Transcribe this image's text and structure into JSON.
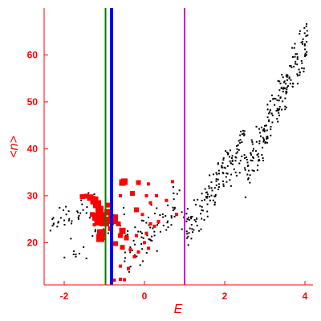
{
  "chart_data": {
    "type": "scatter",
    "xlabel": "E",
    "ylabel": "<n>",
    "xlim": [
      -2.5,
      4.2
    ],
    "ylim": [
      11,
      70
    ],
    "xticks": [
      -2,
      0,
      2,
      4
    ],
    "yticks": [
      20,
      30,
      40,
      50,
      60
    ],
    "xtick_labels": [
      "-2",
      "0",
      "2",
      "4"
    ],
    "ytick_labels": [
      "20",
      "30",
      "40",
      "50",
      "60"
    ],
    "grid": false,
    "colors": {
      "axes": "#ff0000",
      "background_points": "#000000",
      "highlight_points": "#ff0000",
      "line_green": "#008000",
      "line_blue": "#0000ff",
      "line_magenta": "#cc00cc"
    },
    "vertical_lines": [
      {
        "x": -0.97,
        "color": "green"
      },
      {
        "x": -0.82,
        "color": "blue"
      },
      {
        "x": 1.0,
        "color": "magenta"
      }
    ],
    "series": [
      {
        "color": "black",
        "style": "small dots",
        "clusters": [
          {
            "x_range": [
              -2.4,
              -1.2
            ],
            "y_range": [
              22,
              30
            ],
            "count": 40,
            "trend": 0.72
          },
          {
            "x_range": [
              -2.0,
              -0.5
            ],
            "y_range": [
              15,
              28
            ],
            "count": 30,
            "trend": 0.7
          },
          {
            "x_range": [
              -0.5,
              1.0
            ],
            "y_range": [
              14,
              33
            ],
            "count": 80,
            "trend": 0.55
          },
          {
            "x_range": [
              1.0,
              2.5
            ],
            "y_range": [
              18,
              45
            ],
            "count": 150,
            "trend": 0.75
          },
          {
            "x_range": [
              2.5,
              4.1
            ],
            "y_range": [
              30,
              68
            ],
            "count": 200,
            "trend": 0.8
          }
        ]
      },
      {
        "color": "red",
        "style": "squares",
        "points": [
          {
            "x": -1.55,
            "y": 29.8,
            "size": 3
          },
          {
            "x": -1.45,
            "y": 29.9,
            "size": 3
          },
          {
            "x": -1.35,
            "y": 29.6,
            "size": 4
          },
          {
            "x": -1.25,
            "y": 29.0,
            "size": 5
          },
          {
            "x": -1.18,
            "y": 28.2,
            "size": 5
          },
          {
            "x": -1.12,
            "y": 27.0,
            "size": 5
          },
          {
            "x": -1.05,
            "y": 25.8,
            "size": 4
          },
          {
            "x": -1.0,
            "y": 24.5,
            "size": 6
          },
          {
            "x": -1.08,
            "y": 22.0,
            "size": 5
          },
          {
            "x": -1.1,
            "y": 21.0,
            "size": 5
          },
          {
            "x": -1.3,
            "y": 26.0,
            "size": 3
          },
          {
            "x": -1.2,
            "y": 25.5,
            "size": 5
          },
          {
            "x": -0.92,
            "y": 26.5,
            "size": 4
          },
          {
            "x": -0.78,
            "y": 25.0,
            "size": 6
          },
          {
            "x": -0.65,
            "y": 24.0,
            "size": 3
          },
          {
            "x": -0.55,
            "y": 22.5,
            "size": 4
          },
          {
            "x": -0.45,
            "y": 21.0,
            "size": 3
          },
          {
            "x": -0.6,
            "y": 21.5,
            "size": 3
          },
          {
            "x": -0.72,
            "y": 19.8,
            "size": 3
          },
          {
            "x": -0.55,
            "y": 19.0,
            "size": 3
          },
          {
            "x": -0.35,
            "y": 18.5,
            "size": 2
          },
          {
            "x": -0.25,
            "y": 17.0,
            "size": 2
          },
          {
            "x": -0.6,
            "y": 15.0,
            "size": 2
          },
          {
            "x": -0.4,
            "y": 14.5,
            "size": 2
          },
          {
            "x": -0.75,
            "y": 12.0,
            "size": 2
          },
          {
            "x": -0.6,
            "y": 12.2,
            "size": 2
          },
          {
            "x": -0.5,
            "y": 12.1,
            "size": 2
          },
          {
            "x": -0.2,
            "y": 27.0,
            "size": 3
          },
          {
            "x": -0.05,
            "y": 26.0,
            "size": 2
          },
          {
            "x": 0.05,
            "y": 22.0,
            "size": 2
          },
          {
            "x": 0.15,
            "y": 24.0,
            "size": 2
          },
          {
            "x": 0.25,
            "y": 23.5,
            "size": 2
          },
          {
            "x": 0.35,
            "y": 24.5,
            "size": 2
          },
          {
            "x": -0.2,
            "y": 21.5,
            "size": 2
          },
          {
            "x": 0.0,
            "y": 20.0,
            "size": 2
          },
          {
            "x": 0.1,
            "y": 18.8,
            "size": 2
          },
          {
            "x": -0.15,
            "y": 18.0,
            "size": 2
          },
          {
            "x": -0.5,
            "y": 33.0,
            "size": 4
          },
          {
            "x": -0.55,
            "y": 32.8,
            "size": 4
          },
          {
            "x": -0.15,
            "y": 32.8,
            "size": 3
          },
          {
            "x": 0.1,
            "y": 32.5,
            "size": 2
          },
          {
            "x": -0.3,
            "y": 30.5,
            "size": 3
          },
          {
            "x": -0.6,
            "y": 30.0,
            "size": 2
          },
          {
            "x": 0.05,
            "y": 30.0,
            "size": 2
          },
          {
            "x": 0.15,
            "y": 28.5,
            "size": 2
          },
          {
            "x": 0.3,
            "y": 30.0,
            "size": 2
          },
          {
            "x": 0.55,
            "y": 29.0,
            "size": 2
          },
          {
            "x": 0.7,
            "y": 33.0,
            "size": 2
          },
          {
            "x": 0.8,
            "y": 26.0,
            "size": 2
          },
          {
            "x": -1.25,
            "y": 23.8,
            "size": 2
          },
          {
            "x": -1.15,
            "y": 24.5,
            "size": 5
          },
          {
            "x": -0.85,
            "y": 23.0,
            "size": 3
          },
          {
            "x": -0.9,
            "y": 28.0,
            "size": 3
          }
        ]
      }
    ]
  }
}
